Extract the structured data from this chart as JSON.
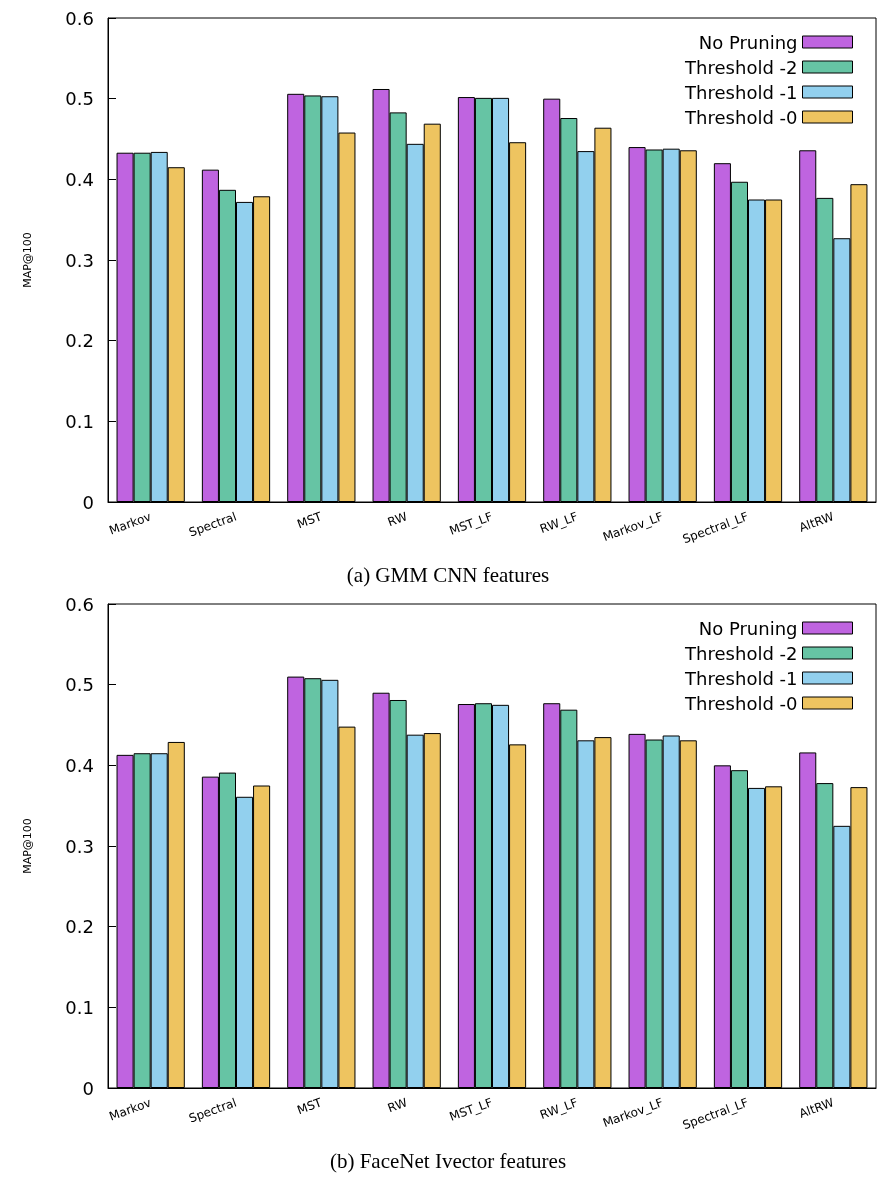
{
  "chart_data": [
    {
      "type": "bar",
      "title": "(a) GMM CNN features",
      "ylabel": "MAP@100",
      "categories": [
        "Markov",
        "Spectral",
        "MST",
        "RW",
        "MST_LF",
        "RW_LF",
        "Markov_LF",
        "Spectral_LF",
        "AltRW"
      ],
      "ylim": [
        0,
        0.6
      ],
      "yticks": [
        0,
        0.1,
        0.2,
        0.3,
        0.4,
        0.5,
        0.6
      ],
      "grid": false,
      "legend": "top right",
      "series": [
        {
          "name": "No Pruning",
          "color": "#bf64e0",
          "values": [
            0.433,
            0.412,
            0.506,
            0.512,
            0.502,
            0.5,
            0.44,
            0.42,
            0.436
          ]
        },
        {
          "name": "Threshold -2",
          "color": "#66c4a4",
          "values": [
            0.433,
            0.387,
            0.504,
            0.483,
            0.501,
            0.476,
            0.437,
            0.397,
            0.377
          ]
        },
        {
          "name": "Threshold -1",
          "color": "#92d0ee",
          "values": [
            0.434,
            0.372,
            0.503,
            0.444,
            0.501,
            0.435,
            0.438,
            0.375,
            0.327
          ]
        },
        {
          "name": "Threshold -0",
          "color": "#eec460",
          "values": [
            0.415,
            0.379,
            0.458,
            0.469,
            0.446,
            0.464,
            0.436,
            0.375,
            0.394
          ]
        }
      ]
    },
    {
      "type": "bar",
      "title": "(b) FaceNet Ivector features",
      "ylabel": "MAP@100",
      "categories": [
        "Markov",
        "Spectral",
        "MST",
        "RW",
        "MST_LF",
        "RW_LF",
        "Markov_LF",
        "Spectral_LF",
        "AltRW"
      ],
      "ylim": [
        0,
        0.6
      ],
      "yticks": [
        0,
        0.1,
        0.2,
        0.3,
        0.4,
        0.5,
        0.6
      ],
      "grid": false,
      "legend": "top right",
      "series": [
        {
          "name": "No Pruning",
          "color": "#bf64e0",
          "values": [
            0.413,
            0.386,
            0.51,
            0.49,
            0.476,
            0.477,
            0.439,
            0.4,
            0.416
          ]
        },
        {
          "name": "Threshold -2",
          "color": "#66c4a4",
          "values": [
            0.415,
            0.391,
            0.508,
            0.481,
            0.477,
            0.469,
            0.432,
            0.394,
            0.378
          ]
        },
        {
          "name": "Threshold -1",
          "color": "#92d0ee",
          "values": [
            0.415,
            0.361,
            0.506,
            0.438,
            0.475,
            0.431,
            0.437,
            0.372,
            0.325
          ]
        },
        {
          "name": "Threshold -0",
          "color": "#eec460",
          "values": [
            0.429,
            0.375,
            0.448,
            0.44,
            0.426,
            0.435,
            0.431,
            0.374,
            0.373
          ]
        }
      ]
    }
  ]
}
